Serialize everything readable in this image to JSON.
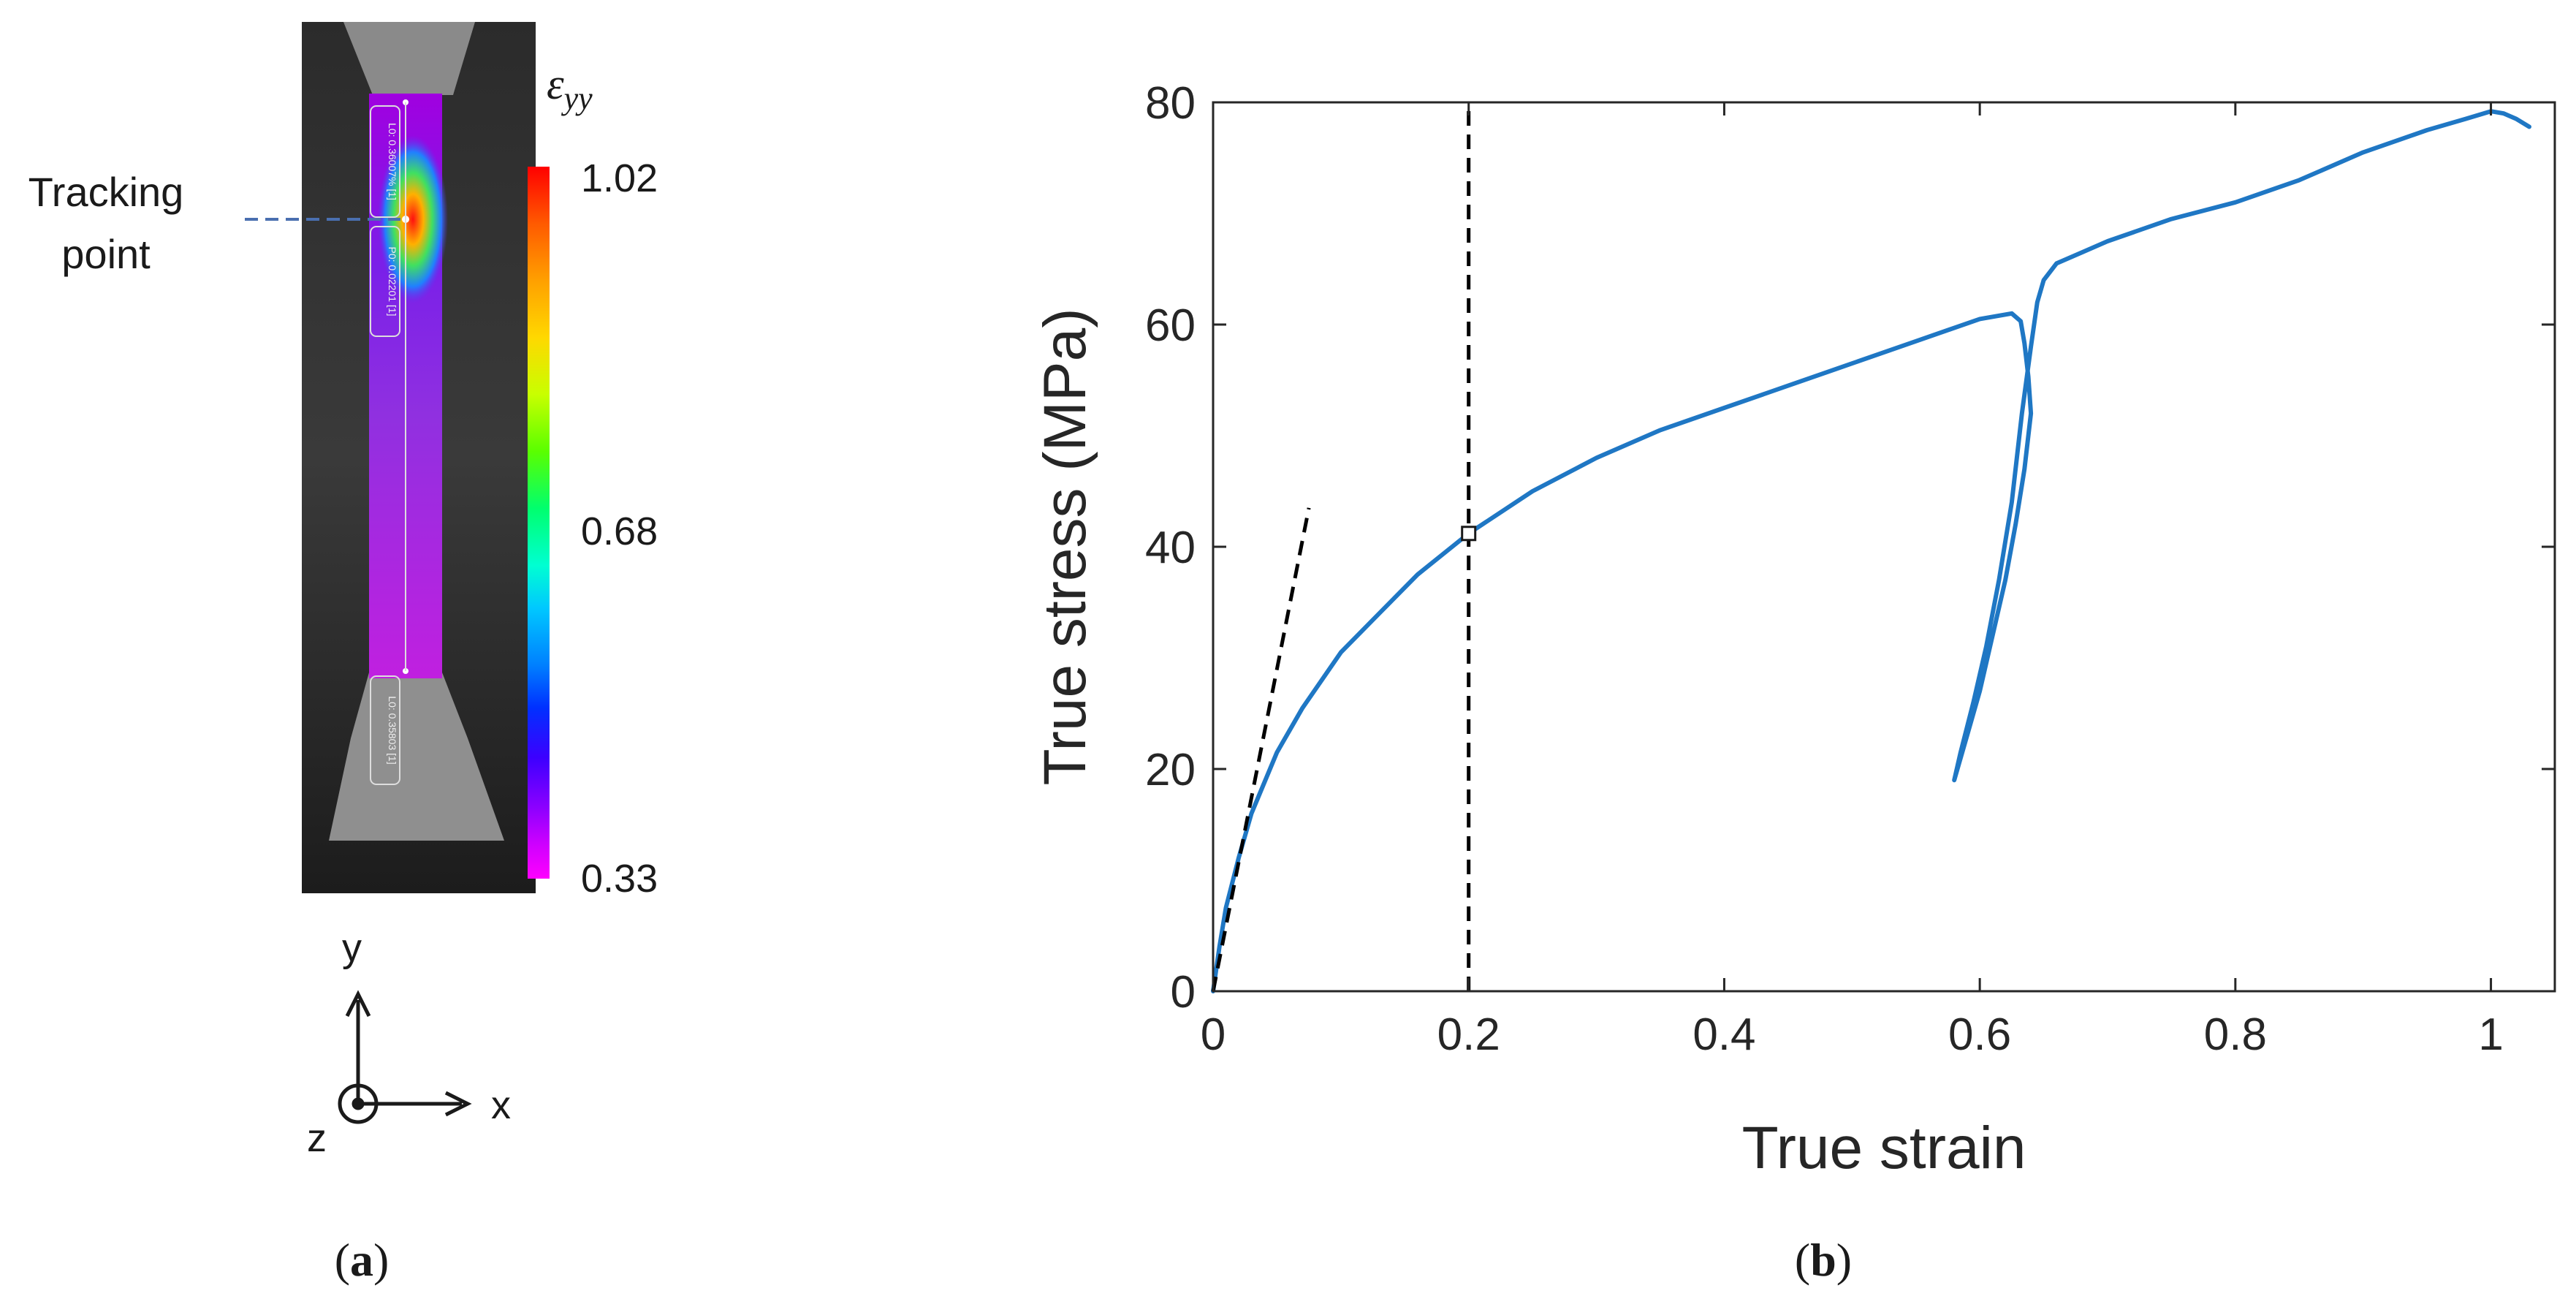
{
  "panel_a": {
    "annotation": "Tracking point",
    "colorbar_symbol": "ε",
    "colorbar_subscript": "yy",
    "colorbar_ticks": [
      "1.02",
      "0.68",
      "0.33"
    ],
    "colorbar_tick_values": [
      1.02,
      0.68,
      0.33
    ],
    "colorbar_colors": [
      "#ff0000",
      "#ff5a00",
      "#ffa000",
      "#ffd800",
      "#c8ff00",
      "#5aff00",
      "#00ff6e",
      "#00ffd2",
      "#00c8ff",
      "#0080ff",
      "#0030ff",
      "#3c00ff",
      "#8c00ff",
      "#cc00ff",
      "#ff00ff"
    ],
    "specimen_labels": [
      "L0: 0.36007% [1]",
      "P0: 0.02201 [1]",
      "L0: 0.35803 [1]"
    ],
    "axes_triad": {
      "y": "y",
      "x": "x",
      "z": "z"
    },
    "caption_label": "a"
  },
  "panel_b": {
    "caption_label": "b"
  },
  "chart_data": {
    "type": "line",
    "xlabel": "True strain",
    "ylabel": "True stress (MPa)",
    "xlim": [
      0,
      1.05
    ],
    "ylim": [
      0,
      80
    ],
    "xticks": [
      0,
      0.2,
      0.4,
      0.6,
      0.8,
      1
    ],
    "xtick_labels": [
      "0",
      "0.2",
      "0.4",
      "0.6",
      "0.8",
      "1"
    ],
    "yticks": [
      0,
      20,
      40,
      60,
      80
    ],
    "ytick_labels": [
      "0",
      "20",
      "40",
      "60",
      "80"
    ],
    "grid": false,
    "series": [
      {
        "color": "#1f77c4",
        "x": [
          0,
          0.005,
          0.01,
          0.02,
          0.03,
          0.05,
          0.07,
          0.1,
          0.13,
          0.16,
          0.2,
          0.25,
          0.3,
          0.35,
          0.4,
          0.45,
          0.5,
          0.55,
          0.6,
          0.625,
          0.632,
          0.635,
          0.638,
          0.64,
          0.635,
          0.628,
          0.62,
          0.61,
          0.6,
          0.59,
          0.58,
          0.585,
          0.595,
          0.605,
          0.615,
          0.625,
          0.633,
          0.64,
          0.645,
          0.65,
          0.66,
          0.68,
          0.7,
          0.75,
          0.8,
          0.85,
          0.9,
          0.95,
          0.98,
          1.0,
          1.01,
          1.02,
          1.03
        ],
        "y": [
          0,
          4,
          7.5,
          12,
          16,
          21.5,
          25.5,
          30.5,
          34,
          37.5,
          41.2,
          45,
          48,
          50.5,
          52.5,
          54.5,
          56.5,
          58.5,
          60.5,
          61,
          60.3,
          58.3,
          55.3,
          52,
          47,
          42,
          37,
          32,
          27,
          23,
          19,
          21.5,
          26,
          31,
          37,
          44,
          52,
          58,
          62,
          64,
          65.5,
          66.5,
          67.5,
          69.5,
          71,
          73,
          75.5,
          77.5,
          78.5,
          79.2,
          79,
          78.5,
          77.8
        ]
      },
      {
        "x": [
          0,
          0.075
        ],
        "y": [
          0,
          43.5
        ],
        "color": "#000000"
      },
      {
        "x": [
          0.2,
          0.2
        ],
        "y": [
          0,
          80
        ],
        "color": "#000000"
      }
    ],
    "markers": [
      {
        "x": 0.2,
        "y": 41.2
      }
    ]
  }
}
